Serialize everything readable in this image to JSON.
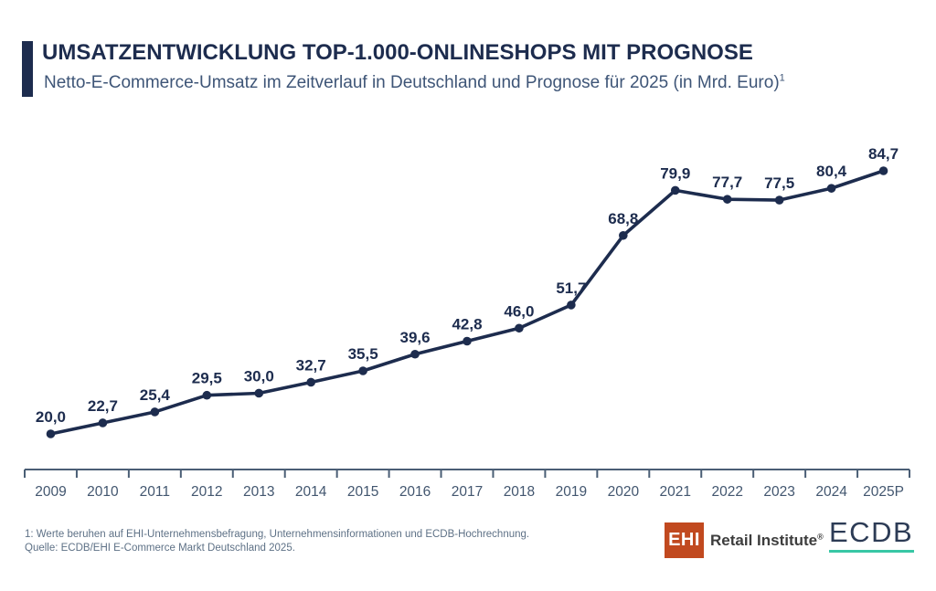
{
  "header": {
    "title": "UMSATZENTWICKLUNG TOP-1.000-ONLINESHOPS MIT PROGNOSE",
    "subtitle": "Netto-E-Commerce-Umsatz im Zeitverlauf in Deutschland und Prognose für 2025 (in Mrd. Euro)",
    "subtitle_superscript": "1",
    "accent_color": "#1d2c4e"
  },
  "chart_data": {
    "type": "line",
    "title": "UMSATZENTWICKLUNG TOP-1.000-ONLINESHOPS MIT PROGNOSE",
    "subtitle": "Netto-E-Commerce-Umsatz im Zeitverlauf in Deutschland und Prognose für 2025 (in Mrd. Euro)",
    "unit": "Mrd. Euro",
    "categories": [
      "2009",
      "2010",
      "2011",
      "2012",
      "2013",
      "2014",
      "2015",
      "2016",
      "2017",
      "2018",
      "2019",
      "2020",
      "2021",
      "2022",
      "2023",
      "2024",
      "2025P"
    ],
    "values": [
      20.0,
      22.7,
      25.4,
      29.5,
      30.0,
      32.7,
      35.5,
      39.6,
      42.8,
      46.0,
      51.7,
      68.8,
      79.9,
      77.7,
      77.5,
      80.4,
      84.7
    ],
    "value_labels": [
      "20,0",
      "22,7",
      "25,4",
      "29,5",
      "30,0",
      "32,7",
      "35,5",
      "39,6",
      "42,8",
      "46,0",
      "51,7",
      "68,8",
      "79,9",
      "77,7",
      "77,5",
      "80,4",
      "84,7"
    ],
    "xlabel": "",
    "ylabel": "",
    "grid": false,
    "y_axis_visible": false,
    "legend": "none",
    "marker": "circle",
    "line_color": "#1d2c4e",
    "marker_color": "#1d2c4e",
    "data_label_color": "#1d2c4e",
    "axis_color": "#4a5e75",
    "tick_label_color": "#42566f"
  },
  "footer": {
    "footnote": "1: Werte beruhen auf EHI-Unternehmensbefragung, Unternehmensinformationen und ECDB-Hochrechnung.",
    "source": "Quelle: ECDB/EHI E-Commerce Markt Deutschland 2025.",
    "ehi_logo": {
      "mark": "EHI",
      "text": "Retail Institute",
      "registered": "®",
      "mark_bg": "#c1491f",
      "mark_color": "#ffffff",
      "text_color": "#3d3d3d"
    },
    "ecdb_logo": {
      "text": "ECDB",
      "color": "#2c3b55",
      "underline_color": "#38c7a5"
    }
  }
}
